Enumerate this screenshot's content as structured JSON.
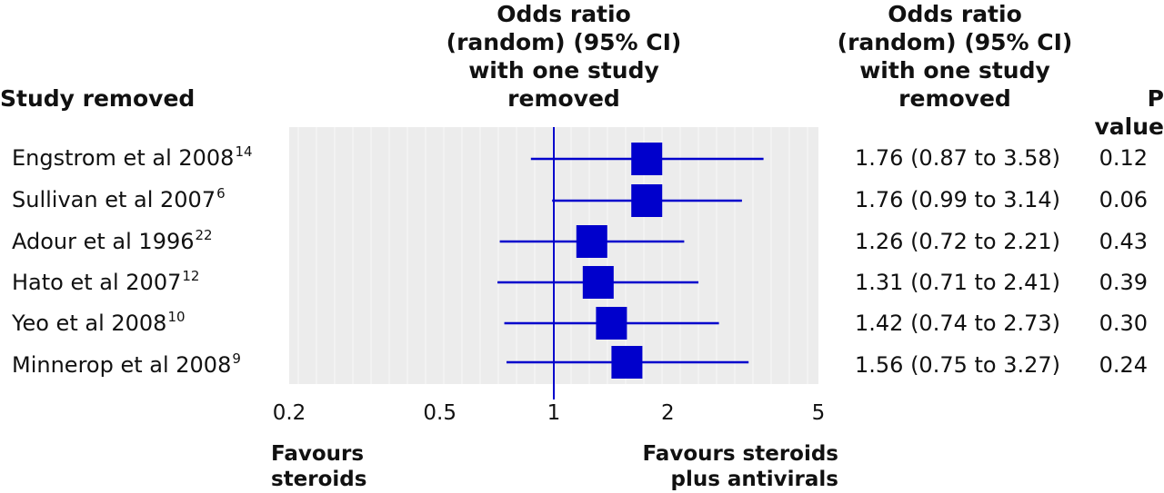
{
  "header": {
    "study_removed": "Study removed",
    "plot_title": [
      "Odds ratio",
      "(random) (95% CI)",
      "with one study",
      "removed"
    ],
    "or_title": [
      "Odds ratio",
      "(random) (95% CI)",
      "with one study",
      "removed"
    ],
    "p_value": "P value"
  },
  "rows": [
    {
      "study": "Engstrom et al 2008",
      "ref": "14",
      "or_text": "1.76 (0.87 to 3.58)",
      "p": "0.12"
    },
    {
      "study": "Sullivan et al 2007",
      "ref": "6",
      "or_text": "1.76 (0.99 to 3.14)",
      "p": "0.06"
    },
    {
      "study": "Adour et al 1996",
      "ref": "22",
      "or_text": "1.26 (0.72 to 2.21)",
      "p": "0.43"
    },
    {
      "study": "Hato et al 2007",
      "ref": "12",
      "or_text": "1.31 (0.71 to 2.41)",
      "p": "0.39"
    },
    {
      "study": "Yeo et al 2008",
      "ref": "10",
      "or_text": "1.42 (0.74 to 2.73)",
      "p": "0.30"
    },
    {
      "study": "Minnerop et al 2008",
      "ref": "9",
      "or_text": "1.56 (0.75 to 3.27)",
      "p": "0.24"
    }
  ],
  "footer": {
    "favours_left": [
      "Favours",
      "steroids"
    ],
    "favours_right": [
      "Favours steroids",
      "plus antivirals"
    ]
  },
  "colors": {
    "marker": "#0000cc",
    "panel": "#ececec",
    "grid": "#ffffff"
  },
  "chart_data": {
    "type": "forest",
    "x_scale": "log",
    "xlim": [
      0.2,
      5
    ],
    "x_ticks": [
      "0.2",
      "0.5",
      "1",
      "2",
      "5"
    ],
    "reference_line": 1,
    "series": [
      {
        "label": "Engstrom et al 2008",
        "or": 1.76,
        "lower": 0.87,
        "upper": 3.58
      },
      {
        "label": "Sullivan et al 2007",
        "or": 1.76,
        "lower": 0.99,
        "upper": 3.14
      },
      {
        "label": "Adour et al 1996",
        "or": 1.26,
        "lower": 0.72,
        "upper": 2.21
      },
      {
        "label": "Hato et al 2007",
        "or": 1.31,
        "lower": 0.71,
        "upper": 2.41
      },
      {
        "label": "Yeo et al 2008",
        "or": 1.42,
        "lower": 0.74,
        "upper": 2.73
      },
      {
        "label": "Minnerop et al 2008",
        "or": 1.56,
        "lower": 0.75,
        "upper": 3.27
      }
    ]
  }
}
